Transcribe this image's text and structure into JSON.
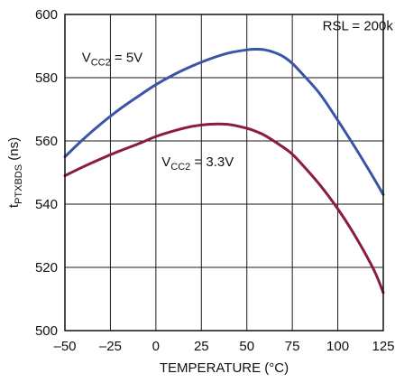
{
  "chart_data": {
    "type": "line",
    "title": "",
    "xlabel": "TEMPERATURE (°C)",
    "ylabel": {
      "base": "t",
      "sub": "PTXBDS",
      "suffix": " (ns)"
    },
    "xlim": [
      -50,
      125
    ],
    "ylim": [
      500,
      600
    ],
    "x_ticks": [
      -50,
      -25,
      0,
      25,
      50,
      75,
      100,
      125
    ],
    "x_tick_labels": [
      "–50",
      "–25",
      "0",
      "25",
      "50",
      "75",
      "100",
      "125"
    ],
    "y_ticks": [
      500,
      520,
      540,
      560,
      580,
      600
    ],
    "y_tick_labels": [
      "500",
      "520",
      "540",
      "560",
      "580",
      "600"
    ],
    "grid": true,
    "legend": "none",
    "series": [
      {
        "name": "VCC2 = 5V",
        "color": "#3a55a5",
        "x": [
          -50,
          -40,
          -30,
          -20,
          -10,
          0,
          10,
          20,
          30,
          40,
          50,
          55,
          60,
          65,
          70,
          75,
          80,
          90,
          100,
          110,
          120,
          125
        ],
        "y": [
          555.0,
          560.5,
          565.5,
          570.0,
          574.0,
          577.8,
          581.0,
          583.7,
          586.0,
          587.8,
          588.8,
          589.0,
          588.8,
          588.0,
          586.7,
          584.5,
          581.5,
          575.0,
          566.5,
          557.5,
          548.0,
          543.0
        ]
      },
      {
        "name": "VCC2 = 3.3V",
        "color": "#8a1c3c",
        "x": [
          -50,
          -40,
          -30,
          -20,
          -10,
          0,
          10,
          20,
          30,
          40,
          50,
          55,
          60,
          70,
          75,
          80,
          90,
          100,
          110,
          120,
          125
        ],
        "y": [
          549.0,
          551.8,
          554.4,
          556.8,
          559.0,
          561.4,
          563.2,
          564.6,
          565.3,
          565.2,
          564.0,
          563.0,
          561.7,
          558.0,
          555.8,
          552.8,
          546.2,
          538.5,
          529.5,
          519.0,
          512.0
        ]
      }
    ],
    "annotations": [
      {
        "name": "annotation-rsl",
        "text": "RSL = 200k",
        "x": 111,
        "y": 595
      },
      {
        "name": "annotation-vcc2-5v",
        "base": "V",
        "sub": "CC2",
        "suffix": " = 5V",
        "x": -24,
        "y": 585
      },
      {
        "name": "annotation-vcc2-3v3",
        "base": "V",
        "sub": "CC2",
        "suffix": " = 3.3V",
        "x": 23,
        "y": 552
      }
    ]
  }
}
